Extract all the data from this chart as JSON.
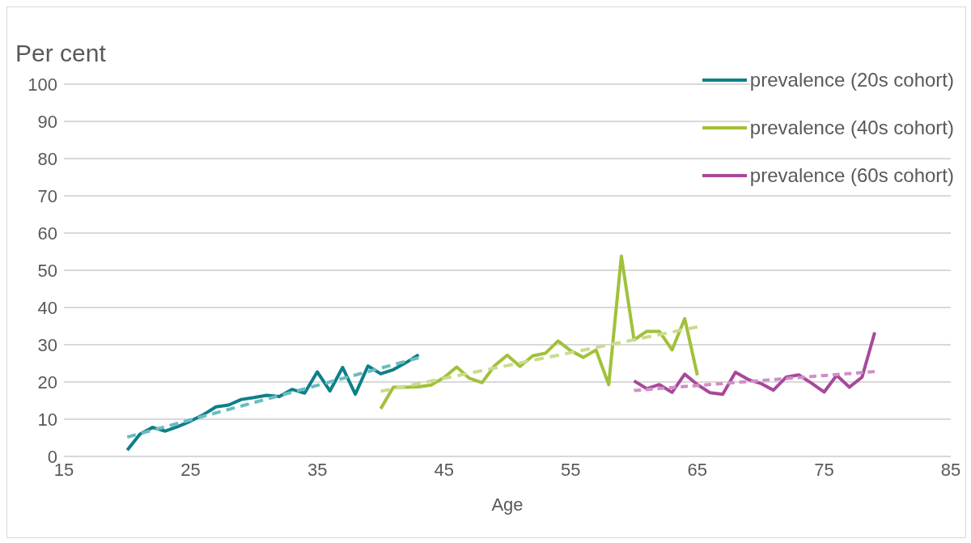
{
  "chart_data": {
    "type": "line",
    "ylabel": "Per cent",
    "xlabel": "Age",
    "xlim": [
      15,
      85
    ],
    "xticks": [
      15,
      25,
      35,
      45,
      55,
      65,
      75,
      85
    ],
    "ylim": [
      0,
      100
    ],
    "yticks": [
      0,
      10,
      20,
      30,
      40,
      50,
      60,
      70,
      80,
      90,
      100
    ],
    "grid": "y",
    "legend": "top right",
    "marker": "none",
    "series": [
      {
        "name": "prevalence (20s cohort)",
        "color": "#0e7f88",
        "x": [
          20,
          21,
          22,
          23,
          24,
          25,
          26,
          27,
          28,
          29,
          30,
          31,
          32,
          33,
          34,
          35,
          36,
          37,
          38,
          39,
          40,
          41,
          42,
          43
        ],
        "values": [
          1.7,
          6,
          7.8,
          6.8,
          8,
          9.5,
          11.2,
          13.3,
          13.8,
          15.3,
          15.8,
          16.4,
          16.1,
          18,
          17,
          22.7,
          17.6,
          23.9,
          16.7,
          24.3,
          22.2,
          23.3,
          25.2,
          27.3
        ]
      },
      {
        "name": "prevalence (40s cohort)",
        "color": "#a1c13a",
        "x": [
          40,
          41,
          42,
          43,
          44,
          45,
          46,
          47,
          48,
          49,
          50,
          51,
          52,
          53,
          54,
          55,
          56,
          57,
          58,
          59,
          60,
          61,
          62,
          63,
          64,
          65
        ],
        "values": [
          12.8,
          18.6,
          18.6,
          18.7,
          19.2,
          21.2,
          24,
          21,
          19.8,
          24.4,
          27.2,
          24.2,
          27,
          27.7,
          31,
          28.4,
          26.6,
          28.6,
          19.3,
          53.8,
          31.3,
          33.6,
          33.6,
          28.6,
          37,
          21.8
        ]
      },
      {
        "name": "prevalence (60s cohort)",
        "color": "#a8489a",
        "x": [
          60,
          61,
          62,
          63,
          64,
          65,
          66,
          67,
          68,
          69,
          70,
          71,
          72,
          73,
          74,
          75,
          76,
          77,
          78,
          79
        ],
        "values": [
          20.3,
          18.2,
          19.3,
          17.2,
          22.1,
          19.3,
          17.1,
          16.7,
          22.6,
          20.7,
          19.6,
          17.8,
          21.3,
          21.9,
          19.7,
          17.3,
          21.8,
          18.6,
          21.3,
          33.3
        ]
      },
      {
        "type": "line",
        "color": "#6bbcc0",
        "line_style": "dashed",
        "x": [
          20,
          43
        ],
        "values": [
          5.2,
          26.5
        ]
      },
      {
        "type": "line",
        "color": "#c9dc8e",
        "line_style": "dashed",
        "x": [
          40,
          65
        ],
        "values": [
          17.5,
          34.8
        ]
      },
      {
        "type": "line",
        "color": "#cf8fc6",
        "line_style": "dashed",
        "x": [
          60,
          79
        ],
        "values": [
          17.7,
          22.8
        ]
      }
    ]
  }
}
